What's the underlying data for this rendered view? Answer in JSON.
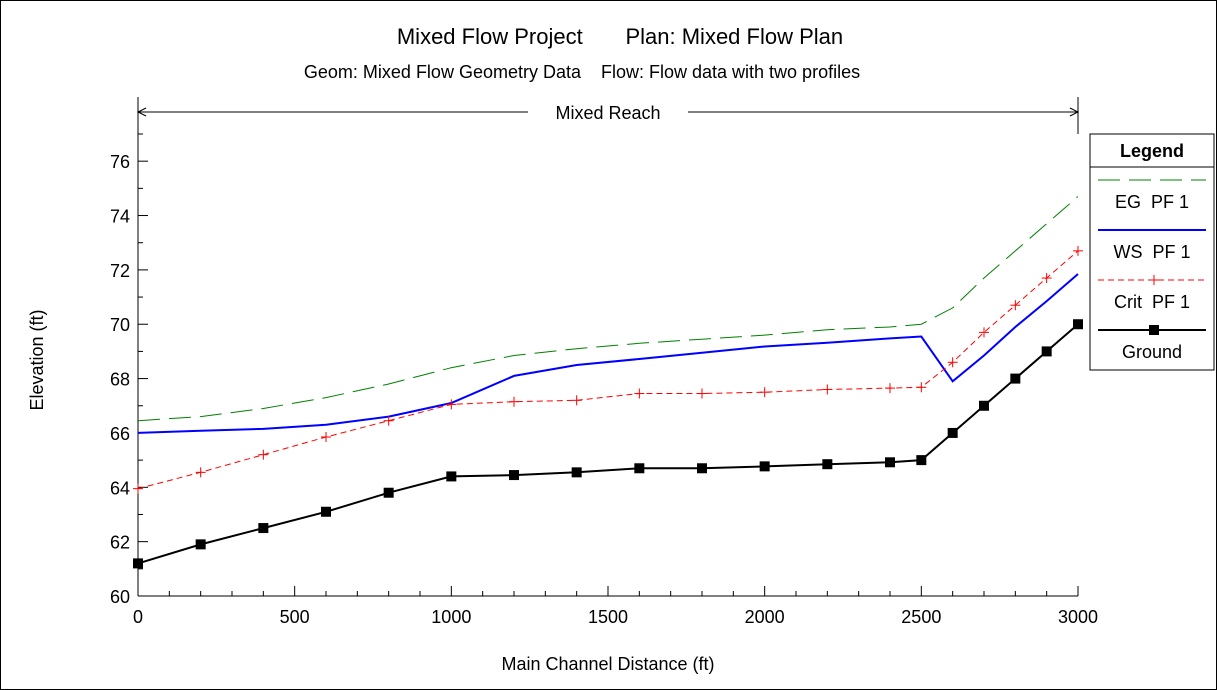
{
  "chart_data": {
    "type": "line",
    "title": "Mixed Flow Project       Plan: Mixed Flow Plan",
    "subtitle": "Geom: Mixed Flow Geometry Data    Flow: Flow data with two profiles",
    "reach_label": "Mixed Reach",
    "xlabel": "Main Channel Distance (ft)",
    "ylabel": "Elevation (ft)",
    "xlim": [
      0,
      3000
    ],
    "ylim": [
      60,
      77
    ],
    "x_ticks": [
      0,
      500,
      1000,
      1500,
      2000,
      2500,
      3000
    ],
    "y_ticks": [
      60,
      62,
      64,
      66,
      68,
      70,
      72,
      74,
      76
    ],
    "legend_position": "right",
    "legend_title": "Legend",
    "series": [
      {
        "name": "EG  PF 1",
        "color": "#008000",
        "style": "dashed",
        "x": [
          0,
          200,
          400,
          600,
          800,
          1000,
          1200,
          1400,
          1600,
          1800,
          2000,
          2200,
          2400,
          2500,
          2600,
          2700,
          2800,
          2900,
          3000
        ],
        "y": [
          66.45,
          66.6,
          66.9,
          67.3,
          67.8,
          68.4,
          68.85,
          69.1,
          69.3,
          69.45,
          69.6,
          69.8,
          69.9,
          70.0,
          70.6,
          71.7,
          72.7,
          73.7,
          74.7
        ]
      },
      {
        "name": "WS  PF 1",
        "color": "#0000ff",
        "style": "solid",
        "x": [
          0,
          200,
          400,
          600,
          800,
          1000,
          1200,
          1400,
          1600,
          1800,
          2000,
          2200,
          2400,
          2500,
          2600,
          2700,
          2800,
          2900,
          3000
        ],
        "y": [
          66.0,
          66.08,
          66.15,
          66.3,
          66.6,
          67.1,
          68.1,
          68.5,
          68.72,
          68.95,
          69.18,
          69.32,
          69.48,
          69.55,
          67.9,
          68.85,
          69.9,
          70.85,
          71.85
        ]
      },
      {
        "name": "Crit  PF 1",
        "color": "#ff0000",
        "style": "dashed-plus",
        "x": [
          0,
          200,
          400,
          600,
          800,
          1000,
          1200,
          1400,
          1600,
          1800,
          2000,
          2200,
          2400,
          2500,
          2600,
          2700,
          2800,
          2900,
          3000
        ],
        "y": [
          63.95,
          64.55,
          65.2,
          65.85,
          66.45,
          67.05,
          67.15,
          67.2,
          67.45,
          67.45,
          67.5,
          67.6,
          67.65,
          67.68,
          68.6,
          69.7,
          70.7,
          71.7,
          72.7
        ]
      },
      {
        "name": "Ground",
        "color": "#000000",
        "style": "solid-square",
        "x": [
          0,
          200,
          400,
          600,
          800,
          1000,
          1200,
          1400,
          1600,
          1800,
          2000,
          2200,
          2400,
          2500,
          2600,
          2700,
          2800,
          2900,
          3000
        ],
        "y": [
          61.2,
          61.9,
          62.5,
          63.1,
          63.8,
          64.4,
          64.45,
          64.55,
          64.7,
          64.7,
          64.77,
          64.85,
          64.92,
          65.0,
          66.0,
          67.0,
          68.0,
          69.0,
          70.0
        ]
      }
    ]
  }
}
